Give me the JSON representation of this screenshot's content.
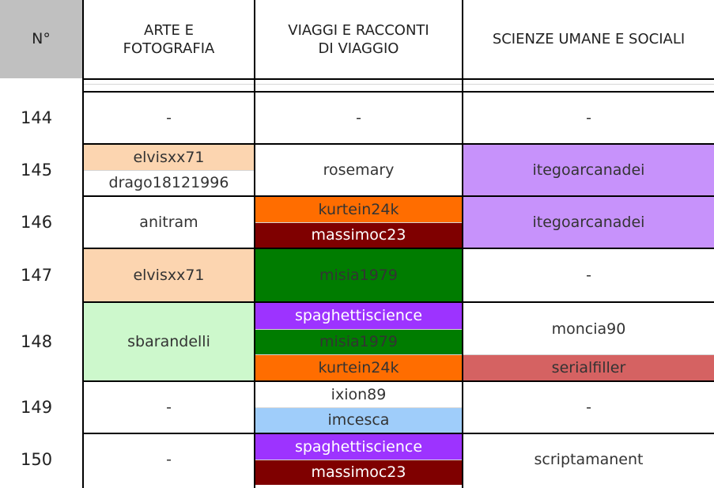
{
  "header": {
    "num": "N°",
    "arte": "ARTE E\nFOTOGRAFIA",
    "viaggi": "VIAGGI E RACCONTI\nDI VIAGGIO",
    "scienze": "SCIENZE UMANE E SOCIALI"
  },
  "colors": {
    "peach": "#fcd5b0",
    "lightgreen": "#cdf8cc",
    "orange": "#ff6d00",
    "maroon": "#7f0000",
    "green": "#007c00",
    "purple": "#9d33ff",
    "lavender": "#c792fb",
    "lightblue": "#9fcdfa",
    "salmon": "#d56262"
  },
  "rows": [
    {
      "num": "144",
      "arte": [
        "-"
      ],
      "viaggi": [
        "-"
      ],
      "scienze": [
        "-"
      ]
    },
    {
      "num": "145",
      "arte": [
        "elvisxx71",
        "drago18121996"
      ],
      "viaggi": [
        "rosemary"
      ],
      "scienze": [
        "itegoarcanadei"
      ]
    },
    {
      "num": "146",
      "arte": [
        "anitram"
      ],
      "viaggi": [
        "kurtein24k",
        "massimoc23"
      ],
      "scienze": [
        "itegoarcanadei"
      ]
    },
    {
      "num": "147",
      "arte": [
        "elvisxx71"
      ],
      "viaggi": [
        "misia1979"
      ],
      "scienze": [
        "-"
      ]
    },
    {
      "num": "148",
      "arte": [
        "sbarandelli"
      ],
      "viaggi": [
        "spaghettiscience",
        "misia1979",
        "kurtein24k"
      ],
      "scienze": [
        "moncia90",
        "serialfiller"
      ]
    },
    {
      "num": "149",
      "arte": [
        "-"
      ],
      "viaggi": [
        "ixion89",
        "imcesca"
      ],
      "scienze": [
        "-"
      ]
    },
    {
      "num": "150",
      "arte": [
        "-"
      ],
      "viaggi": [
        "spaghettiscience",
        "massimoc23"
      ],
      "scienze": [
        "scriptamanent"
      ]
    }
  ]
}
